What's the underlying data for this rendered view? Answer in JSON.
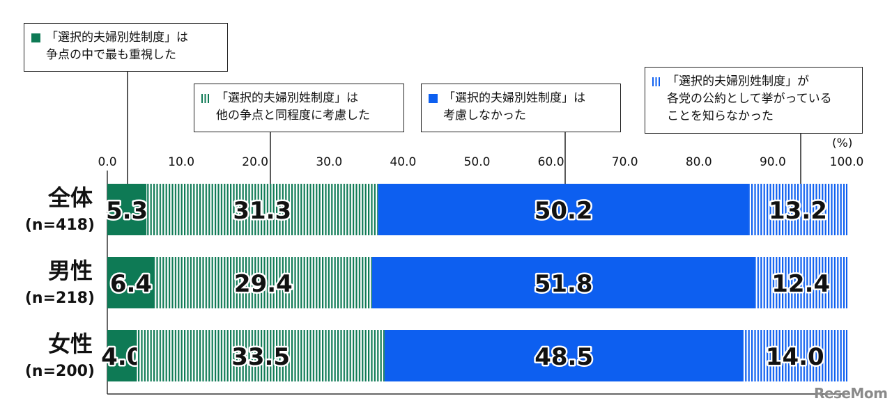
{
  "unit_label": "(%)",
  "brand": "ReseMom",
  "legend": [
    {
      "lines": [
        "「選択的夫婦別姓制度」は",
        "争点の中で最も重視した"
      ],
      "color": "#0e7a55",
      "pattern": "solid"
    },
    {
      "lines": [
        "「選択的夫婦別姓制度」は",
        "他の争点と同程度に考慮した"
      ],
      "color": "#0e7a55",
      "pattern": "stripe"
    },
    {
      "lines": [
        "「選択的夫婦別姓制度」は",
        "考慮しなかった"
      ],
      "color": "#0d5ff0",
      "pattern": "solid"
    },
    {
      "lines": [
        "「選択的夫婦別姓制度」が",
        "各党の公約として挙がっている",
        "ことを知らなかった"
      ],
      "color": "#0d5ff0",
      "pattern": "stripe"
    }
  ],
  "chart_data": {
    "type": "bar",
    "orientation": "horizontal-stacked",
    "xlim": [
      0,
      100
    ],
    "x_ticks": [
      "0.0",
      "10.0",
      "20.0",
      "30.0",
      "40.0",
      "50.0",
      "60.0",
      "70.0",
      "80.0",
      "90.0",
      "100.0"
    ],
    "categories": [
      {
        "label": "全体",
        "n": "(n=418)"
      },
      {
        "label": "男性",
        "n": "(n=218)"
      },
      {
        "label": "女性",
        "n": "(n=200)"
      }
    ],
    "series": [
      {
        "color": "#0e7a55",
        "pattern": "solid",
        "values": [
          5.3,
          6.4,
          4.0
        ],
        "labels": [
          "5.3",
          "6.4",
          "4.0"
        ]
      },
      {
        "color": "#0e7a55",
        "pattern": "stripe",
        "values": [
          31.3,
          29.4,
          33.5
        ],
        "labels": [
          "31.3",
          "29.4",
          "33.5"
        ]
      },
      {
        "color": "#0d5ff0",
        "pattern": "solid",
        "values": [
          50.2,
          51.8,
          48.5
        ],
        "labels": [
          "50.2",
          "51.8",
          "48.5"
        ]
      },
      {
        "color": "#0d5ff0",
        "pattern": "stripe",
        "values": [
          13.2,
          12.4,
          14.0
        ],
        "labels": [
          "13.2",
          "12.4",
          "14.0"
        ]
      }
    ]
  }
}
